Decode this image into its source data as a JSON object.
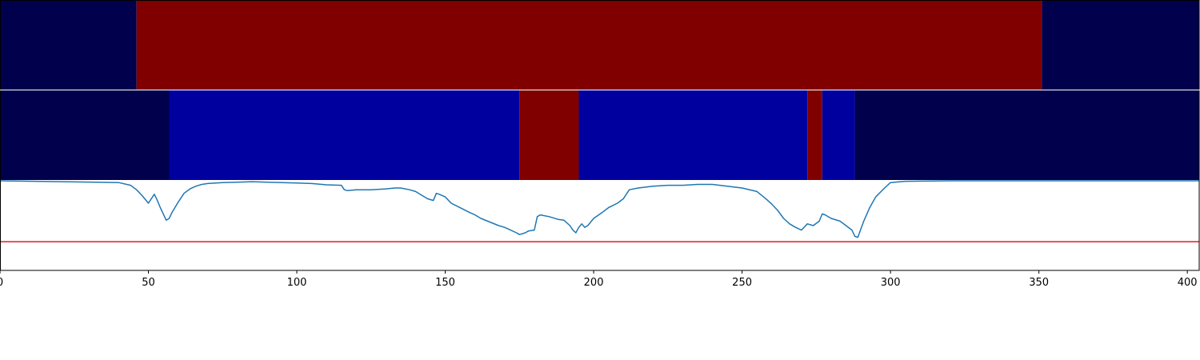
{
  "chart_data": {
    "type": "heatmap",
    "title": "",
    "xlabel": "",
    "ylabel": "",
    "xlim": [
      0,
      404
    ],
    "x_ticks": [
      0,
      50,
      100,
      150,
      200,
      250,
      300,
      350,
      400
    ],
    "x_tick_labels": [
      "0",
      "50",
      "100",
      "150",
      "200",
      "250",
      "300",
      "350",
      "400"
    ],
    "panels": [
      {
        "kind": "segment_strip",
        "segments": [
          {
            "start": 0,
            "end": 46,
            "color": "#00004c"
          },
          {
            "start": 46,
            "end": 351,
            "color": "#800000"
          },
          {
            "start": 351,
            "end": 404,
            "color": "#00004c"
          }
        ]
      },
      {
        "kind": "segment_strip",
        "segments": [
          {
            "start": 0,
            "end": 57,
            "color": "#00004c"
          },
          {
            "start": 57,
            "end": 175,
            "color": "#00009f"
          },
          {
            "start": 175,
            "end": 195,
            "color": "#800000"
          },
          {
            "start": 195,
            "end": 272,
            "color": "#00009f"
          },
          {
            "start": 272,
            "end": 277,
            "color": "#800000"
          },
          {
            "start": 277,
            "end": 288,
            "color": "#00009f"
          },
          {
            "start": 288,
            "end": 404,
            "color": "#00004c"
          }
        ]
      },
      {
        "kind": "line",
        "ylim": [
          -1.0,
          0.0
        ],
        "threshold": -0.68,
        "threshold_color": "#e31a1c",
        "series_color": "#1f77b4",
        "x": [
          0,
          40,
          44,
          46,
          48,
          50,
          52,
          53,
          54,
          56,
          57,
          58,
          60,
          62,
          64,
          66,
          68,
          70,
          75,
          80,
          85,
          90,
          95,
          100,
          105,
          110,
          115,
          116,
          117,
          120,
          125,
          130,
          133,
          135,
          138,
          140,
          142,
          144,
          146,
          147,
          148,
          150,
          152,
          155,
          158,
          160,
          162,
          165,
          168,
          170,
          172,
          174,
          175,
          177,
          178,
          180,
          181,
          182,
          185,
          188,
          190,
          192,
          193,
          194,
          195,
          196,
          197,
          198,
          200,
          203,
          205,
          208,
          210,
          212,
          215,
          220,
          225,
          230,
          235,
          240,
          245,
          250,
          255,
          258,
          260,
          262,
          264,
          266,
          268,
          270,
          272,
          274,
          276,
          277,
          278,
          280,
          283,
          285,
          287,
          288,
          289,
          291,
          293,
          295,
          298,
          300,
          305,
          320,
          340,
          360,
          380,
          404
        ],
        "y": [
          0.0,
          -0.02,
          -0.05,
          -0.1,
          -0.17,
          -0.25,
          -0.15,
          -0.22,
          -0.3,
          -0.44,
          -0.42,
          -0.35,
          -0.24,
          -0.14,
          -0.09,
          -0.06,
          -0.04,
          -0.03,
          -0.02,
          -0.015,
          -0.01,
          -0.015,
          -0.02,
          -0.025,
          -0.03,
          -0.045,
          -0.05,
          -0.1,
          -0.11,
          -0.1,
          -0.1,
          -0.09,
          -0.08,
          -0.08,
          -0.1,
          -0.12,
          -0.16,
          -0.2,
          -0.22,
          -0.14,
          -0.15,
          -0.18,
          -0.25,
          -0.3,
          -0.35,
          -0.38,
          -0.42,
          -0.46,
          -0.5,
          -0.52,
          -0.55,
          -0.58,
          -0.6,
          -0.58,
          -0.56,
          -0.55,
          -0.4,
          -0.38,
          -0.4,
          -0.43,
          -0.44,
          -0.5,
          -0.55,
          -0.58,
          -0.52,
          -0.48,
          -0.52,
          -0.5,
          -0.42,
          -0.35,
          -0.3,
          -0.25,
          -0.2,
          -0.1,
          -0.08,
          -0.06,
          -0.05,
          -0.05,
          -0.04,
          -0.04,
          -0.06,
          -0.08,
          -0.12,
          -0.2,
          -0.26,
          -0.33,
          -0.42,
          -0.48,
          -0.52,
          -0.55,
          -0.48,
          -0.5,
          -0.45,
          -0.37,
          -0.38,
          -0.42,
          -0.45,
          -0.5,
          -0.55,
          -0.62,
          -0.63,
          -0.45,
          -0.3,
          -0.18,
          -0.08,
          -0.02,
          -0.005,
          0.0,
          0.0,
          0.0,
          0.0,
          0.0
        ]
      }
    ]
  }
}
